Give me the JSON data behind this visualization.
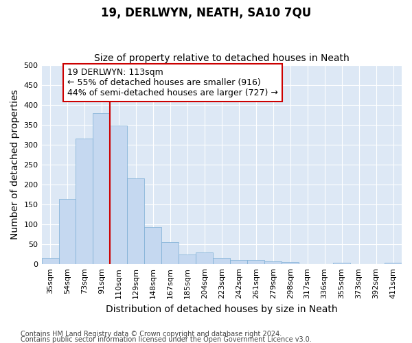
{
  "title": "19, DERLWYN, NEATH, SA10 7QU",
  "subtitle": "Size of property relative to detached houses in Neath",
  "xlabel": "Distribution of detached houses by size in Neath",
  "ylabel": "Number of detached properties",
  "categories": [
    "35sqm",
    "54sqm",
    "73sqm",
    "91sqm",
    "110sqm",
    "129sqm",
    "148sqm",
    "167sqm",
    "185sqm",
    "204sqm",
    "223sqm",
    "242sqm",
    "261sqm",
    "279sqm",
    "298sqm",
    "317sqm",
    "336sqm",
    "355sqm",
    "373sqm",
    "392sqm",
    "411sqm"
  ],
  "values": [
    15,
    163,
    315,
    378,
    348,
    216,
    93,
    55,
    24,
    29,
    15,
    11,
    10,
    7,
    5,
    1,
    0,
    4,
    0,
    0,
    3
  ],
  "bar_color": "#c5d8f0",
  "bar_edge_color": "#7aadd4",
  "bar_width": 1.0,
  "ylim": [
    0,
    500
  ],
  "yticks": [
    0,
    50,
    100,
    150,
    200,
    250,
    300,
    350,
    400,
    450,
    500
  ],
  "property_label": "19 DERLWYN: 113sqm",
  "annotation_line1": "← 55% of detached houses are smaller (916)",
  "annotation_line2": "44% of semi-detached houses are larger (727) →",
  "vline_x": 3.5,
  "vline_color": "#cc0000",
  "box_edge_color": "#cc0000",
  "footnote1": "Contains HM Land Registry data © Crown copyright and database right 2024.",
  "footnote2": "Contains public sector information licensed under the Open Government Licence v3.0.",
  "figure_bg": "#ffffff",
  "plot_bg_color": "#dde8f5",
  "title_fontsize": 12,
  "subtitle_fontsize": 10,
  "axis_label_fontsize": 10,
  "tick_fontsize": 8,
  "annotation_fontsize": 9,
  "footnote_fontsize": 7
}
